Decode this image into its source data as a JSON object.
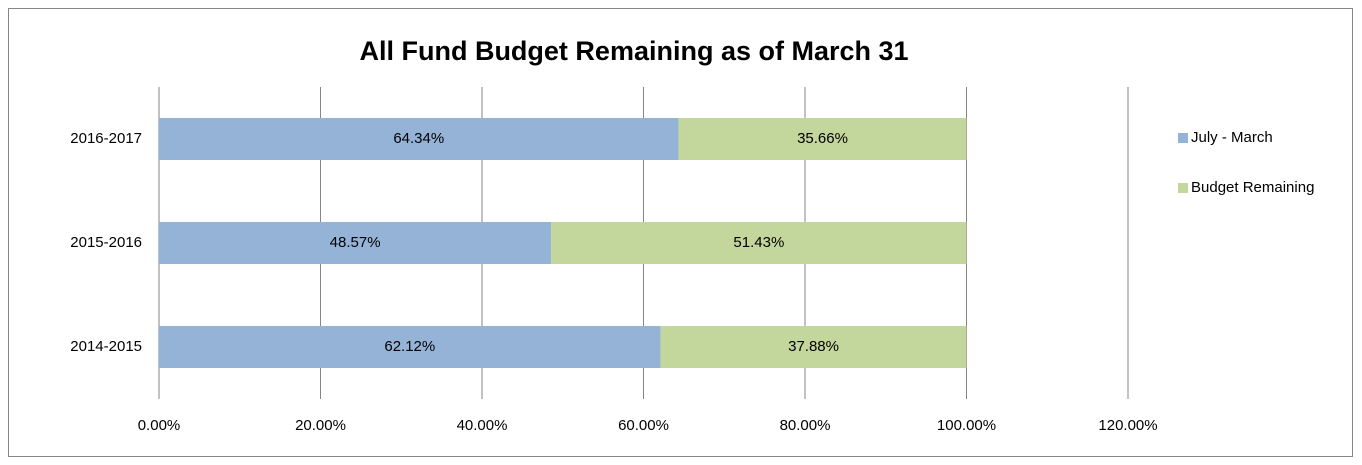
{
  "chart_data": {
    "type": "stacked-barh",
    "title": "All Fund Budget Remaining as of  March 31",
    "categories": [
      "2016-2017",
      "2015-2016",
      "2014-2015"
    ],
    "series": [
      {
        "name": "July - March",
        "color": "#95b3d7",
        "values": [
          64.34,
          48.57,
          62.12
        ],
        "value_labels": [
          "64.34%",
          "48.57%",
          "62.12%"
        ]
      },
      {
        "name": "Budget Remaining",
        "color": "#c3d69b",
        "values": [
          35.66,
          51.43,
          37.88
        ],
        "value_labels": [
          "35.66%",
          "51.43%",
          "37.88%"
        ]
      }
    ],
    "xlim": [
      0,
      120
    ],
    "xticks": [
      {
        "value": 0,
        "label": "0.00%"
      },
      {
        "value": 20,
        "label": "20.00%"
      },
      {
        "value": 40,
        "label": "40.00%"
      },
      {
        "value": 60,
        "label": "60.00%"
      },
      {
        "value": 80,
        "label": "80.00%"
      },
      {
        "value": 100,
        "label": "100.00%"
      },
      {
        "value": 120,
        "label": "120.00%"
      }
    ],
    "grid": true,
    "legend": "right"
  }
}
